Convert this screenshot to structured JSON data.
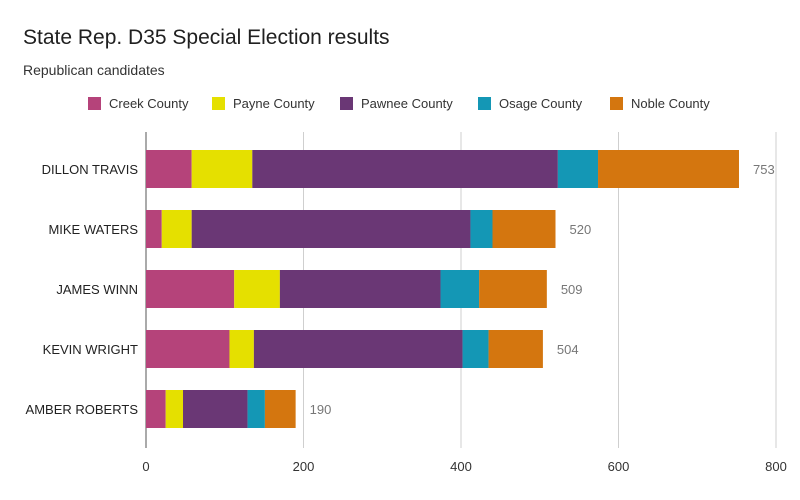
{
  "chart_data": {
    "type": "bar",
    "orientation": "horizontal",
    "stacked": true,
    "title": "State Rep. D35 Special Election results",
    "subtitle": "Republican candidates",
    "categories": [
      "DILLON TRAVIS",
      "MIKE WATERS",
      "JAMES WINN",
      "KEVIN WRIGHT",
      "AMBER ROBERTS"
    ],
    "series": [
      {
        "name": "Creek County",
        "color": "#b5437a",
        "values": [
          58,
          20,
          112,
          106,
          25
        ]
      },
      {
        "name": "Payne County",
        "color": "#e5e000",
        "values": [
          77,
          38,
          58,
          31,
          22
        ]
      },
      {
        "name": "Pawnee County",
        "color": "#6a3775",
        "values": [
          388,
          354,
          204,
          265,
          82
        ]
      },
      {
        "name": "Osage County",
        "color": "#1497b5",
        "values": [
          51,
          28,
          49,
          33,
          22
        ]
      },
      {
        "name": "Noble County",
        "color": "#d4760f",
        "values": [
          179,
          80,
          86,
          69,
          39
        ]
      }
    ],
    "totals": [
      "753",
      "520",
      "509",
      "504",
      "190"
    ],
    "xlim": [
      0,
      800
    ],
    "xticks": [
      "0",
      "200",
      "400",
      "600",
      "800"
    ],
    "grid": true,
    "legend": "top"
  }
}
